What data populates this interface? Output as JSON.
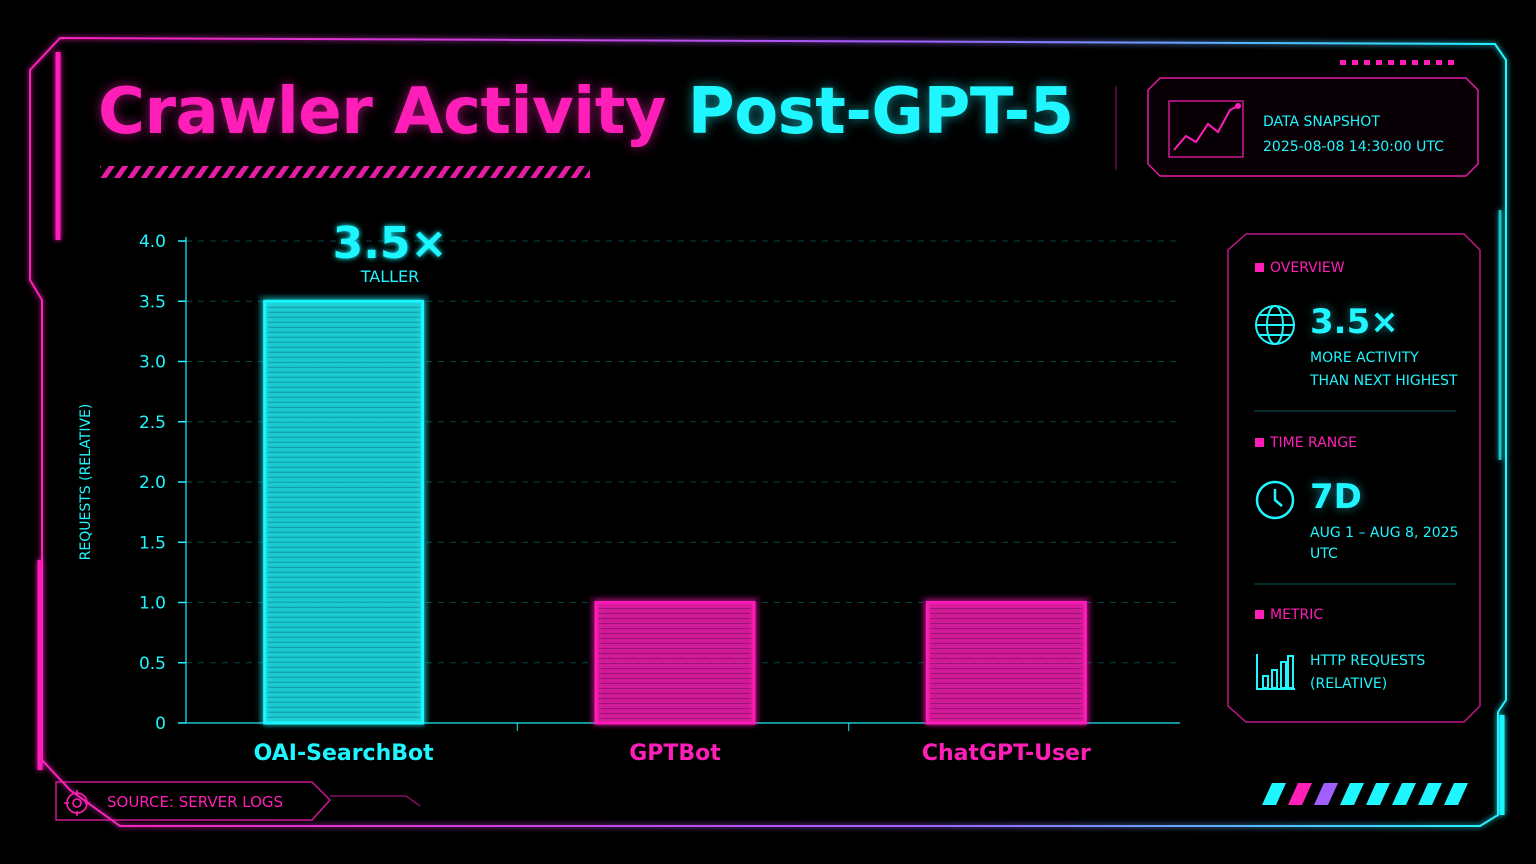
{
  "title": {
    "part1": "Crawler Activity",
    "part2": "Post-GPT-5"
  },
  "snapshot": {
    "label": "DATA SNAPSHOT",
    "timestamp": "2025-08-08 14:30:00 UTC"
  },
  "chart_data": {
    "type": "bar",
    "categories": [
      "OAI-SearchBot",
      "GPTBot",
      "ChatGPT-User"
    ],
    "values": [
      3.5,
      1.0,
      1.0
    ],
    "ylabel": "REQUESTS (RELATIVE)",
    "xlabel": "",
    "ylim": [
      0,
      4.0
    ],
    "yticks": [
      "0",
      "0.5",
      "1.0",
      "1.5",
      "2.0",
      "2.5",
      "3.0",
      "3.5",
      "4.0"
    ],
    "grid": true,
    "bar_colors": [
      "#1ff6ff",
      "#ff1fb8",
      "#ff1fb8"
    ],
    "annotation": {
      "value": "3.5×",
      "label": "TALLER"
    }
  },
  "panel": {
    "overview": {
      "title": "OVERVIEW",
      "value": "3.5×",
      "line1": "MORE ACTIVITY",
      "line2": "THAN NEXT HIGHEST",
      "icon": "globe-icon"
    },
    "time_range": {
      "title": "TIME RANGE",
      "value": "7D",
      "line1": "AUG 1 – AUG 8, 2025",
      "line2": "UTC",
      "icon": "clock-icon"
    },
    "metric": {
      "title": "METRIC",
      "line1": "HTTP REQUESTS",
      "line2": "(RELATIVE)",
      "icon": "bar-chart-icon"
    }
  },
  "footer": {
    "source": "SOURCE: SERVER LOGS"
  },
  "colors": {
    "pink": "#ff1fb8",
    "cyan": "#1ff6ff",
    "background": "#000000"
  }
}
